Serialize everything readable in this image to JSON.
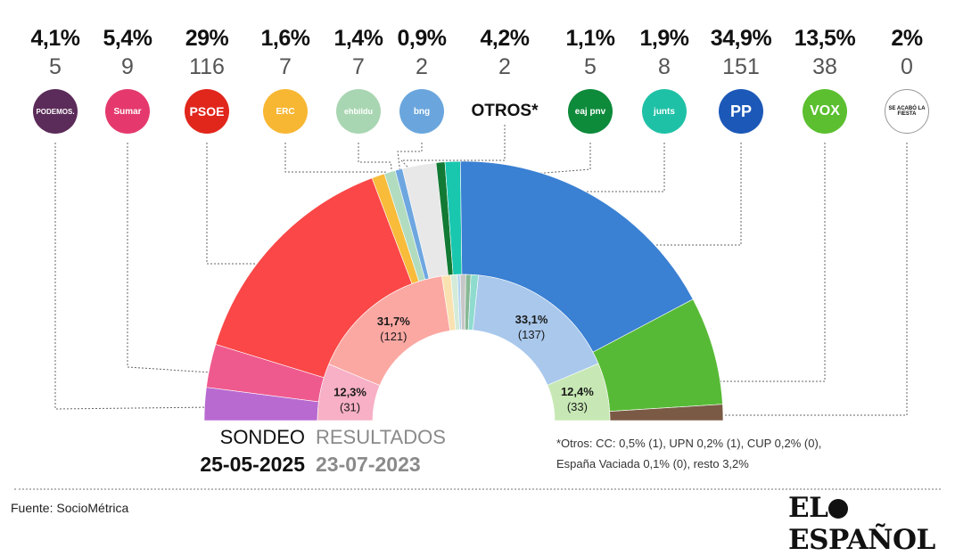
{
  "parties": [
    {
      "id": "podemos",
      "pct": "4,1%",
      "seats": "5",
      "logo_text": "PODEMOS.",
      "logo_color": "#5b2b59",
      "sondeo": 4.1,
      "resultados": null
    },
    {
      "id": "sumar",
      "pct": "5,4%",
      "seats": "9",
      "logo_text": "Sumar",
      "logo_color": "#e5396d",
      "sondeo": 5.4,
      "resultados": 12.3
    },
    {
      "id": "psoe",
      "pct": "29%",
      "seats": "116",
      "logo_text": "PSOE",
      "logo_color": "#e1261c",
      "sondeo": 29.0,
      "resultados": 31.7
    },
    {
      "id": "erc",
      "pct": "1,6%",
      "seats": "7",
      "logo_text": "ERC",
      "logo_color": "#f7b733",
      "sondeo": 1.6,
      "resultados": 1.9
    },
    {
      "id": "bildu",
      "pct": "1,4%",
      "seats": "7",
      "logo_text": "ehbildu",
      "logo_color": "#a9d6b2",
      "sondeo": 1.4,
      "resultados": 1.4
    },
    {
      "id": "bng",
      "pct": "0,9%",
      "seats": "2",
      "logo_text": "bng",
      "logo_color": "#6aa6dd",
      "sondeo": 0.9,
      "resultados": 0.6
    },
    {
      "id": "otros",
      "pct": "4,2%",
      "seats": "2",
      "logo_text": "OTROS*",
      "logo_color": "#e8e8e8",
      "sondeo": 4.2,
      "resultados": 1.2
    },
    {
      "id": "pnv",
      "pct": "1,1%",
      "seats": "5",
      "logo_text": "eaj pnv",
      "logo_color": "#0d8a3a",
      "sondeo": 1.1,
      "resultados": 1.1
    },
    {
      "id": "junts",
      "pct": "1,9%",
      "seats": "8",
      "logo_text": "junts",
      "logo_color": "#1fc1a6",
      "sondeo": 1.9,
      "resultados": 1.6
    },
    {
      "id": "pp",
      "pct": "34,9%",
      "seats": "151",
      "logo_text": "PP",
      "logo_color": "#1c58b8",
      "sondeo": 34.9,
      "resultados": 33.1
    },
    {
      "id": "vox",
      "pct": "13,5%",
      "seats": "38",
      "logo_text": "VOX",
      "logo_color": "#5bbf2f",
      "sondeo": 13.5,
      "resultados": 12.4
    },
    {
      "id": "salf",
      "pct": "2%",
      "seats": "0",
      "logo_text": "SE ACABÓ LA FIESTA",
      "logo_color": "#ffffff",
      "sondeo": 2.0,
      "resultados": null
    }
  ],
  "chart_data": {
    "type": "pie",
    "style": "double-semicircle",
    "series": [
      {
        "name": "SONDEO",
        "date": "25-05-2025",
        "categories": [
          "PODEMOS",
          "Sumar",
          "PSOE",
          "ERC",
          "EH Bildu",
          "BNG",
          "OTROS*",
          "EAJ-PNV",
          "Junts",
          "PP",
          "VOX",
          "Se Acabó La Fiesta"
        ],
        "values": [
          4.1,
          5.4,
          29.0,
          1.6,
          1.4,
          0.9,
          4.2,
          1.1,
          1.9,
          34.9,
          13.5,
          2.0
        ],
        "colors": [
          "#b86ad1",
          "#ef5a8e",
          "#fb4747",
          "#f9bb3a",
          "#b2dcc0",
          "#6ea7e0",
          "#e8e8e8",
          "#127a35",
          "#19c7af",
          "#3a80d3",
          "#57ba36",
          "#7b5a45"
        ]
      },
      {
        "name": "RESULTADOS",
        "date": "23-07-2023",
        "categories": [
          "Sumar",
          "PSOE",
          "ERC",
          "EH Bildu",
          "BNG",
          "OTROS*",
          "EAJ-PNV",
          "Junts",
          "PP",
          "VOX"
        ],
        "values": [
          12.3,
          31.7,
          1.9,
          1.4,
          0.6,
          1.2,
          1.1,
          1.6,
          33.1,
          12.4
        ],
        "colors": [
          "#f7b0c6",
          "#fba8a3",
          "#fae1b0",
          "#d3ebd8",
          "#b3d3ef",
          "#c7c7c7",
          "#86b894",
          "#8fdccf",
          "#a9c8ec",
          "#c7e8b4"
        ]
      }
    ],
    "data_labels": [
      {
        "series": "RESULTADOS",
        "category": "Sumar",
        "pct": "12,3%",
        "seats": "(31)"
      },
      {
        "series": "RESULTADOS",
        "category": "PSOE",
        "pct": "31,7%",
        "seats": "(121)"
      },
      {
        "series": "RESULTADOS",
        "category": "PP",
        "pct": "33,1%",
        "seats": "(137)"
      },
      {
        "series": "RESULTADOS",
        "category": "VOX",
        "pct": "12,4%",
        "seats": "(33)"
      }
    ]
  },
  "labels": {
    "sondeo": "SONDEO",
    "sondeo_date": "25-05-2025",
    "resultados": "RESULTADOS",
    "resultados_date": "23-07-2023",
    "note_line1": "*Otros: CC: 0,5% (1), UPN 0,2% (1), CUP 0,2% (0),",
    "note_line2": "España Vaciada 0,1% (0), resto 3,2%",
    "source": "Fuente: SocioMétrica",
    "brand_left": "EL",
    "brand_right": "ESPAÑOL"
  }
}
